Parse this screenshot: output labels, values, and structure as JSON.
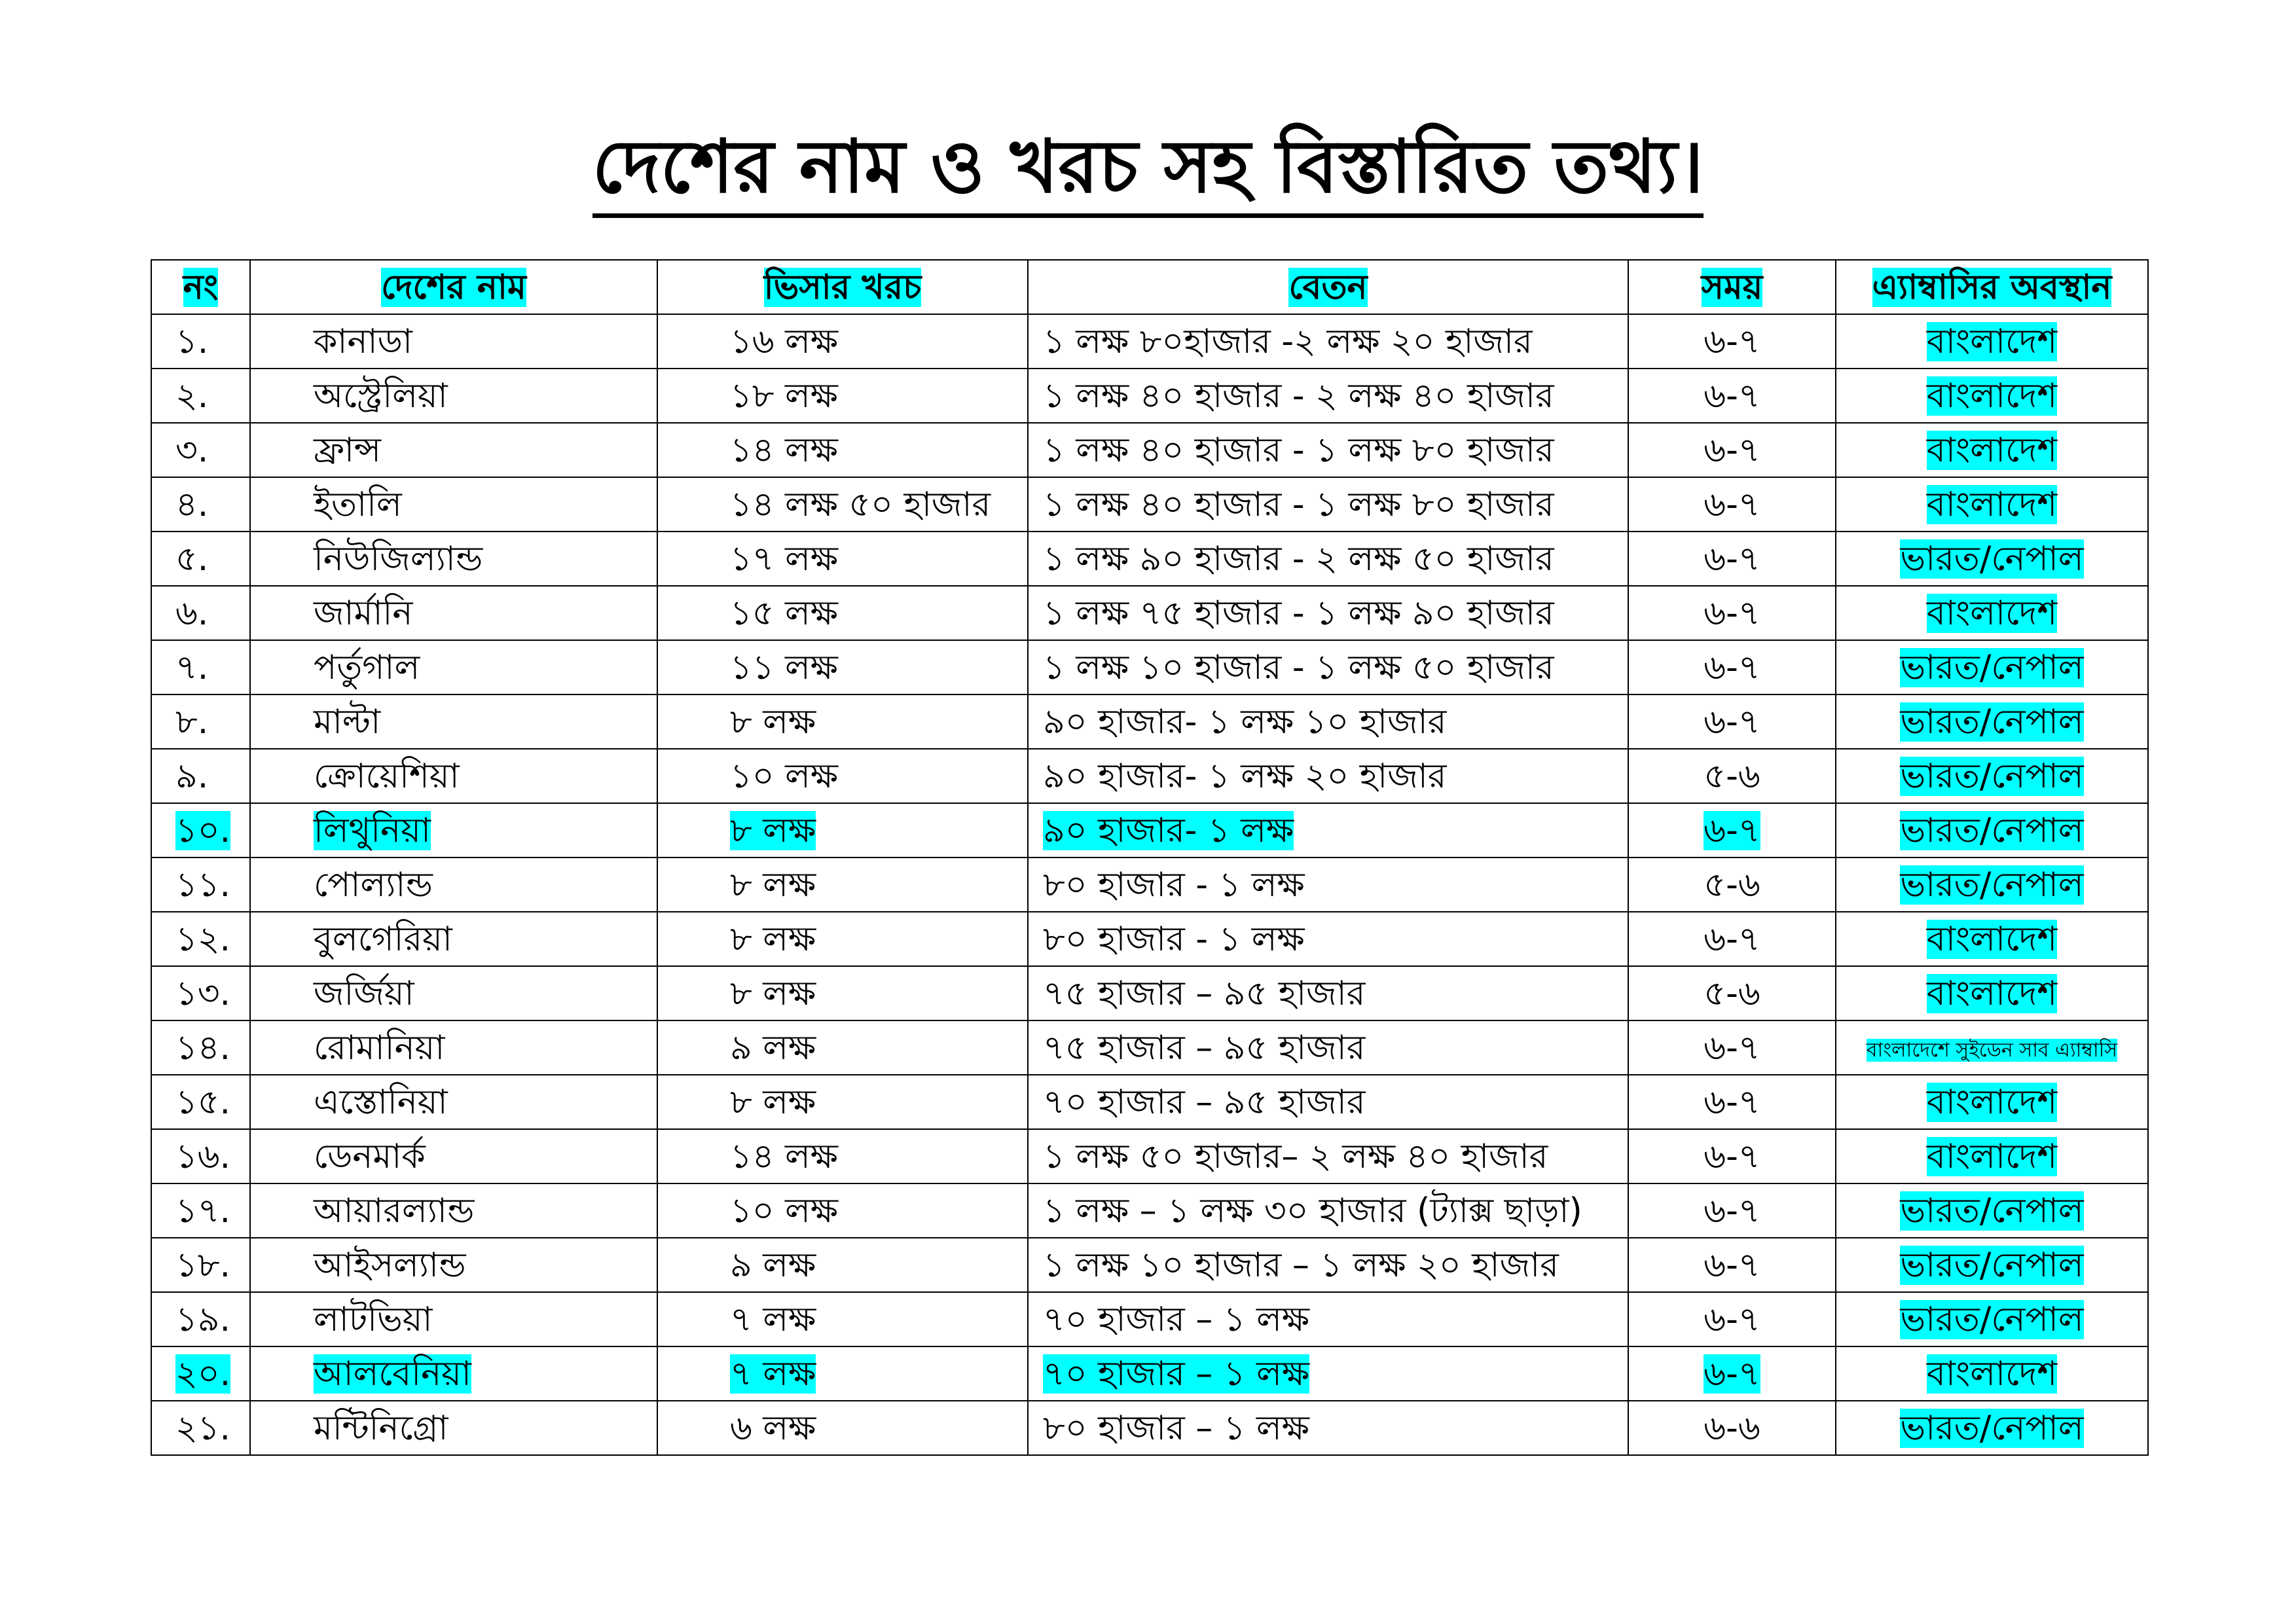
{
  "title": "দেশের নাম ও খরচ সহ বিস্তারিত তথ্য।",
  "highlight_color": "#00ffff",
  "headers": {
    "no": "নং",
    "country": "দেশের নাম",
    "visa_cost": "ভিসার খরচ",
    "salary": "বেতন",
    "time": "সময়",
    "embassy": "এ্যাম্বাসির অবস্থান"
  },
  "rows": [
    {
      "no": "১.",
      "country": "কানাডা",
      "visa_cost": "১৬ লক্ষ",
      "salary": "১ লক্ষ ৮০হাজার -২ লক্ষ ২০ হাজার",
      "time": "৬-৭",
      "embassy": "বাংলাদেশ",
      "row_highlight": false
    },
    {
      "no": "২.",
      "country": "অস্ট্রেলিয়া",
      "visa_cost": "১৮ লক্ষ",
      "salary": "১ লক্ষ ৪০ হাজার - ২ লক্ষ ৪০ হাজার",
      "time": "৬-৭",
      "embassy": "বাংলাদেশ",
      "row_highlight": false
    },
    {
      "no": "৩.",
      "country": "ফ্রান্স",
      "visa_cost": "১৪ লক্ষ",
      "salary": "১ লক্ষ ৪০ হাজার - ১ লক্ষ ৮০ হাজার",
      "time": "৬-৭",
      "embassy": "বাংলাদেশ",
      "row_highlight": false
    },
    {
      "no": "৪.",
      "country": "ইতালি",
      "visa_cost": "১৪ লক্ষ ৫০ হাজার",
      "salary": "১ লক্ষ ৪০ হাজার - ১ লক্ষ ৮০ হাজার",
      "time": "৬-৭",
      "embassy": "বাংলাদেশ",
      "row_highlight": false
    },
    {
      "no": "৫.",
      "country": "নিউজিল্যান্ড",
      "visa_cost": "১৭ লক্ষ",
      "salary": "১ লক্ষ ৯০ হাজার - ২ লক্ষ ৫০ হাজার",
      "time": "৬-৭",
      "embassy": "ভারত/নেপাল",
      "row_highlight": false
    },
    {
      "no": "৬.",
      "country": "জার্মানি",
      "visa_cost": "১৫ লক্ষ",
      "salary": "১ লক্ষ ৭৫ হাজার - ১ লক্ষ ৯০ হাজার",
      "time": "৬-৭",
      "embassy": "বাংলাদেশ",
      "row_highlight": false
    },
    {
      "no": "৭.",
      "country": "পর্তুগাল",
      "visa_cost": "১১ লক্ষ",
      "salary": "১ লক্ষ ১০ হাজার - ১ লক্ষ ৫০ হাজার",
      "time": "৬-৭",
      "embassy": "ভারত/নেপাল",
      "row_highlight": false
    },
    {
      "no": "৮.",
      "country": "মাল্টা",
      "visa_cost": "৮ লক্ষ",
      "salary": "৯০ হাজার- ১ লক্ষ ১০ হাজার",
      "time": "৬-৭",
      "embassy": "ভারত/নেপাল",
      "row_highlight": false
    },
    {
      "no": "৯.",
      "country": "ক্রোয়েশিয়া",
      "visa_cost": "১০ লক্ষ",
      "salary": "৯০ হাজার- ১ লক্ষ ২০ হাজার",
      "time": "৫-৬",
      "embassy": "ভারত/নেপাল",
      "row_highlight": false
    },
    {
      "no": "১০.",
      "country": "লিথুনিয়া",
      "visa_cost": "৮ লক্ষ",
      "salary": "৯০ হাজার- ১ লক্ষ",
      "time": "৬-৭",
      "embassy": "ভারত/নেপাল",
      "row_highlight": true
    },
    {
      "no": "১১.",
      "country": "পোল্যান্ড",
      "visa_cost": "৮ লক্ষ",
      "salary": "৮০ হাজার - ১ লক্ষ",
      "time": "৫-৬",
      "embassy": "ভারত/নেপাল",
      "row_highlight": false
    },
    {
      "no": "১২.",
      "country": "বুলগেরিয়া",
      "visa_cost": "৮ লক্ষ",
      "salary": "৮০ হাজার - ১ লক্ষ",
      "time": "৬-৭",
      "embassy": "বাংলাদেশ",
      "row_highlight": false
    },
    {
      "no": "১৩.",
      "country": "জর্জিয়া",
      "visa_cost": "৮ লক্ষ",
      "salary": "৭৫ হাজার – ৯৫ হাজার",
      "time": "৫-৬",
      "embassy": "বাংলাদেশ",
      "row_highlight": false
    },
    {
      "no": "১৪.",
      "country": "রোমানিয়া",
      "visa_cost": "৯ লক্ষ",
      "salary": "৭৫ হাজার – ৯৫ হাজার",
      "time": "৬-৭",
      "embassy": "বাংলাদেশে সুইডেন সাব এ্যাম্বাসি",
      "row_highlight": false,
      "embassy_small": true
    },
    {
      "no": "১৫.",
      "country": "এস্তোনিয়া",
      "visa_cost": "৮ লক্ষ",
      "salary": "৭০ হাজার – ৯৫ হাজার",
      "time": "৬-৭",
      "embassy": "বাংলাদেশ",
      "row_highlight": false
    },
    {
      "no": "১৬.",
      "country": "ডেনমার্ক",
      "visa_cost": "১৪ লক্ষ",
      "salary": "১ লক্ষ ৫০ হাজার– ২ লক্ষ ৪০ হাজার",
      "time": "৬-৭",
      "embassy": "বাংলাদেশ",
      "row_highlight": false
    },
    {
      "no": "১৭.",
      "country": "আয়ারল্যান্ড",
      "visa_cost": "১০ লক্ষ",
      "salary": "১ লক্ষ – ১ লক্ষ ৩০ হাজার (ট্যাক্স ছাড়া)",
      "time": "৬-৭",
      "embassy": "ভারত/নেপাল",
      "row_highlight": false
    },
    {
      "no": "১৮.",
      "country": "আইসল্যান্ড",
      "visa_cost": "৯ লক্ষ",
      "salary": "১ লক্ষ ১০ হাজার – ১ লক্ষ ২০ হাজার",
      "time": "৬-৭",
      "embassy": "ভারত/নেপাল",
      "row_highlight": false
    },
    {
      "no": "১৯.",
      "country": "লাটভিয়া",
      "visa_cost": "৭ লক্ষ",
      "salary": "৭০ হাজার – ১ লক্ষ",
      "time": "৬-৭",
      "embassy": "ভারত/নেপাল",
      "row_highlight": false
    },
    {
      "no": "২০.",
      "country": "আলবেনিয়া",
      "visa_cost": "৭ লক্ষ",
      "salary": "৭০ হাজার – ১ লক্ষ",
      "time": "৬-৭",
      "embassy": "বাংলাদেশ",
      "row_highlight": true
    },
    {
      "no": "২১.",
      "country": "মন্টিনিগ্রো",
      "visa_cost": "৬ লক্ষ",
      "salary": "৮০ হাজার – ১ লক্ষ",
      "time": "৬-৬",
      "embassy": "ভারত/নেপাল",
      "row_highlight": false
    }
  ]
}
